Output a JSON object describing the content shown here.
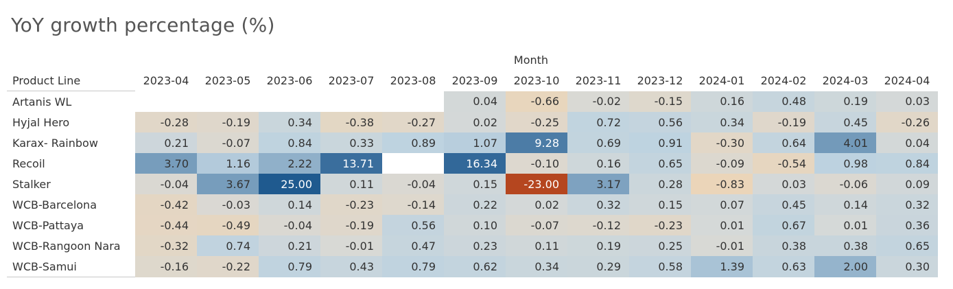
{
  "page": {
    "title": "YoY growth percentage (%)",
    "column_group_label": "Month",
    "row_header_label": "Product Line"
  },
  "chart_data": {
    "type": "heatmap",
    "title": "YoY growth percentage (%)",
    "x_label": "Month",
    "y_label": "Product Line",
    "columns": [
      "2023-04",
      "2023-05",
      "2023-06",
      "2023-07",
      "2023-08",
      "2023-09",
      "2023-10",
      "2023-11",
      "2023-12",
      "2024-01",
      "2024-02",
      "2024-03",
      "2024-04"
    ],
    "color_scale": {
      "type": "diverging",
      "negative": "#b5461f",
      "neutral": "#d7d9d7",
      "positive": "#1f5a8f",
      "neg_light": "#f1d4b0",
      "pos_light": "#a7cde8"
    },
    "rows": [
      {
        "label": "Artanis WL",
        "values": [
          null,
          null,
          null,
          null,
          null,
          "0.04",
          "-0.66",
          "-0.02",
          "-0.15",
          "0.16",
          "0.48",
          "0.19",
          "0.03"
        ]
      },
      {
        "label": "Hyjal Hero",
        "values": [
          "-0.28",
          "-0.19",
          "0.34",
          "-0.38",
          "-0.27",
          "0.02",
          "-0.25",
          "0.72",
          "0.56",
          "0.34",
          "-0.19",
          "0.45",
          "-0.26"
        ]
      },
      {
        "label": "Karax- Rainbow",
        "values": [
          "0.21",
          "-0.07",
          "0.84",
          "0.33",
          "0.89",
          "1.07",
          "9.28",
          "0.69",
          "0.91",
          "-0.30",
          "0.64",
          "4.01",
          "0.04"
        ]
      },
      {
        "label": "Recoil",
        "values": [
          "3.70",
          "1.16",
          "2.22",
          "13.71",
          null,
          "16.34",
          "-0.10",
          "0.16",
          "0.65",
          "-0.09",
          "-0.54",
          "0.98",
          "0.84"
        ]
      },
      {
        "label": "Stalker",
        "values": [
          "-0.04",
          "3.67",
          "25.00",
          "0.11",
          "-0.04",
          "0.15",
          "-23.00",
          "3.17",
          "0.28",
          "-0.83",
          "0.03",
          "-0.06",
          "0.09"
        ]
      },
      {
        "label": "WCB-Barcelona",
        "values": [
          "-0.42",
          "-0.03",
          "0.14",
          "-0.23",
          "-0.14",
          "0.22",
          "0.02",
          "0.32",
          "0.15",
          "0.07",
          "0.45",
          "0.14",
          "0.32"
        ]
      },
      {
        "label": "WCB-Pattaya",
        "values": [
          "-0.44",
          "-0.49",
          "-0.04",
          "-0.19",
          "0.56",
          "0.10",
          "-0.07",
          "-0.12",
          "-0.23",
          "0.01",
          "0.67",
          "0.01",
          "0.36"
        ]
      },
      {
        "label": "WCB-Rangoon Nara",
        "values": [
          "-0.32",
          "0.74",
          "0.21",
          "-0.01",
          "0.47",
          "0.23",
          "0.11",
          "0.19",
          "0.25",
          "-0.01",
          "0.38",
          "0.38",
          "0.65"
        ]
      },
      {
        "label": "WCB-Samui",
        "values": [
          "-0.16",
          "-0.22",
          "0.79",
          "0.43",
          "0.79",
          "0.62",
          "0.34",
          "0.29",
          "0.58",
          "1.39",
          "0.63",
          "2.00",
          "0.30"
        ]
      }
    ]
  }
}
